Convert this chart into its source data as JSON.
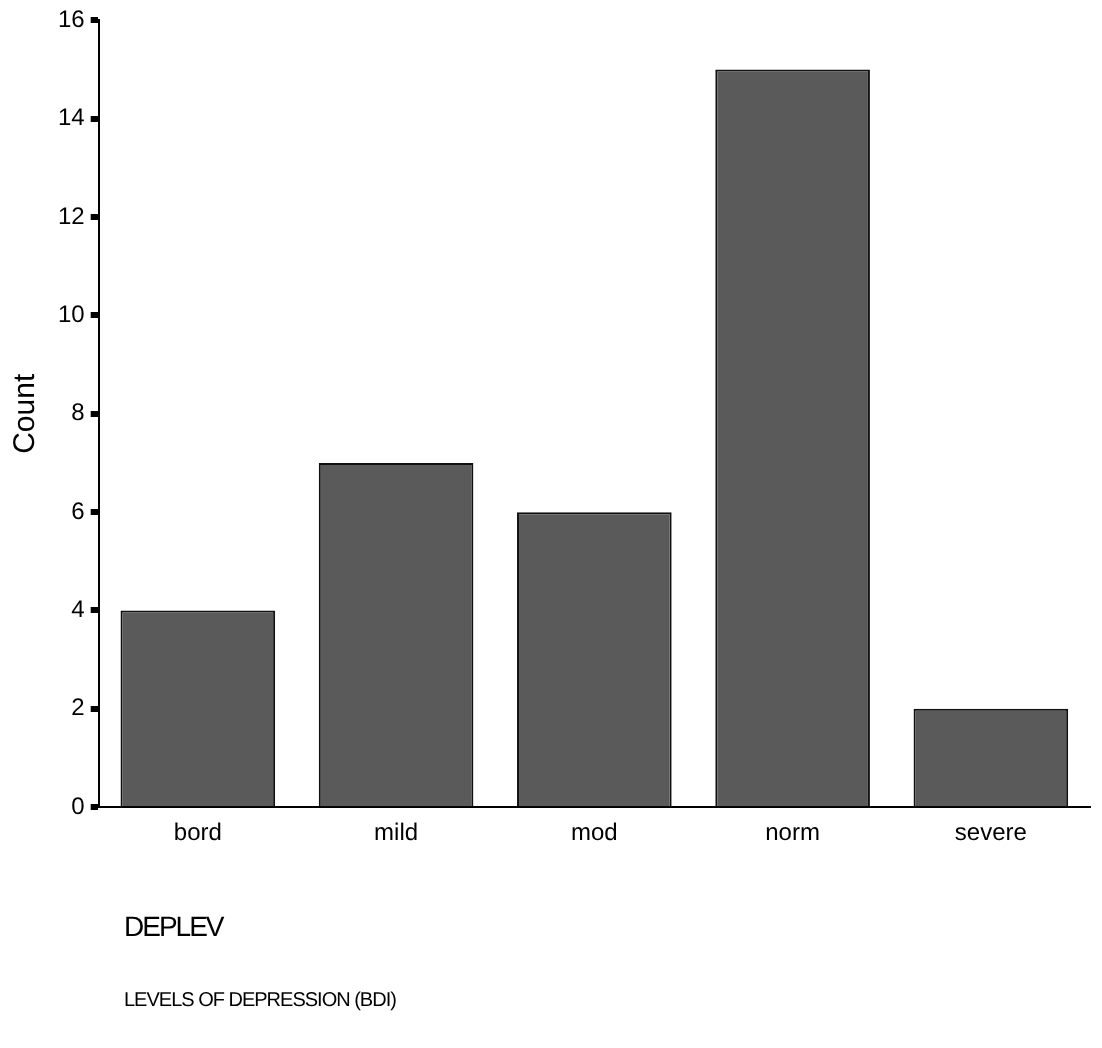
{
  "chart_data": {
    "type": "bar",
    "categories": [
      "bord",
      "mild",
      "mod",
      "norm",
      "severe"
    ],
    "values": [
      4,
      7,
      6,
      15,
      2
    ],
    "color": "#5a5a5a",
    "ylabel": "Count",
    "xlabel": "DEPLEV",
    "ylim": [
      0,
      16
    ],
    "yticks": [
      0,
      2,
      4,
      6,
      8,
      10,
      12,
      14,
      16
    ],
    "grid": false,
    "legend": false,
    "annotations": [
      "LEVELS OF DEPRESSION (BDI)"
    ]
  }
}
